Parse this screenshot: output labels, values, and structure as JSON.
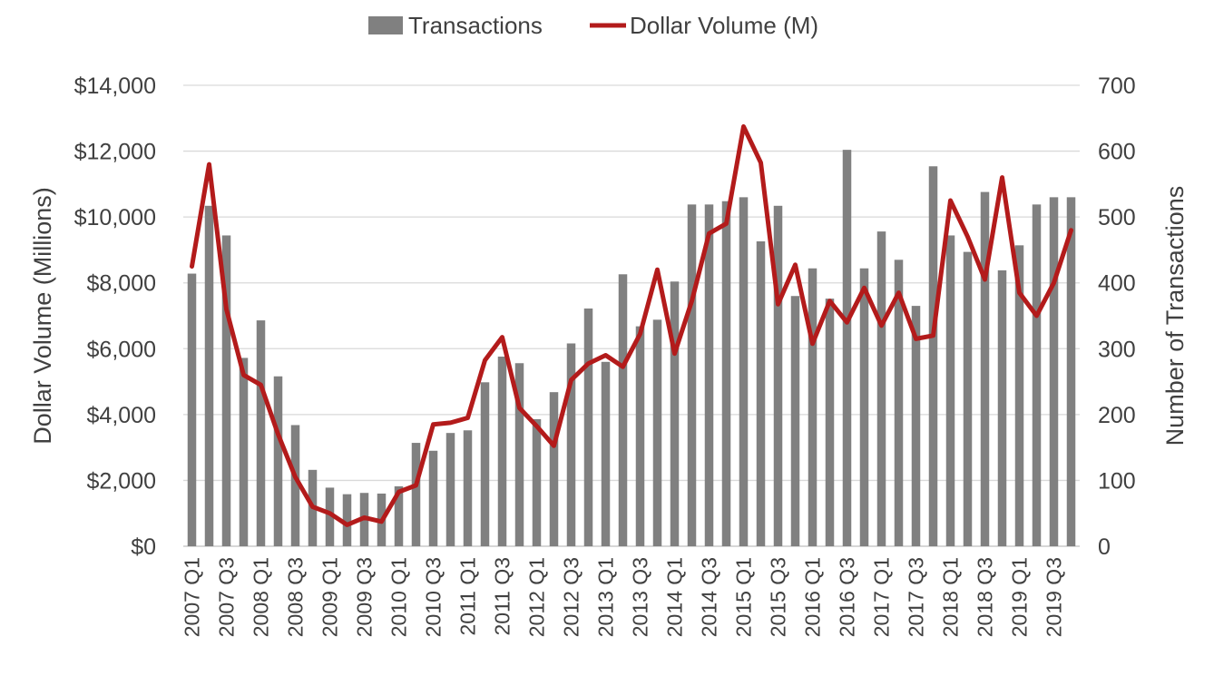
{
  "chart_data": {
    "type": "bar",
    "title": "",
    "legend": {
      "placement": "top-center",
      "items": [
        {
          "label": "Transactions",
          "kind": "bar",
          "color": "#808080"
        },
        {
          "label": "Dollar Volume (M)",
          "kind": "line",
          "color": "#B31B1B"
        }
      ]
    },
    "categories": [
      "2007 Q1",
      "2007 Q2",
      "2007 Q3",
      "2007 Q4",
      "2008 Q1",
      "2008 Q2",
      "2008 Q3",
      "2008 Q4",
      "2009 Q1",
      "2009 Q2",
      "2009 Q3",
      "2009 Q4",
      "2010 Q1",
      "2010 Q2",
      "2010 Q3",
      "2010 Q4",
      "2011 Q1",
      "2011 Q2",
      "2011 Q3",
      "2011 Q4",
      "2012 Q1",
      "2012 Q2",
      "2012 Q3",
      "2012 Q4",
      "2013 Q1",
      "2013 Q2",
      "2013 Q3",
      "2013 Q4",
      "2014 Q1",
      "2014 Q2",
      "2014 Q3",
      "2014 Q4",
      "2015 Q1",
      "2015 Q2",
      "2015 Q3",
      "2015 Q4",
      "2016 Q1",
      "2016 Q2",
      "2016 Q3",
      "2016 Q4",
      "2017 Q1",
      "2017 Q2",
      "2017 Q3",
      "2017 Q4",
      "2018 Q1",
      "2018 Q2",
      "2018 Q3",
      "2018 Q4",
      "2019 Q1",
      "2019 Q2",
      "2019 Q3",
      "2019 Q4"
    ],
    "x_tick_labels": [
      "2007 Q1",
      "2007 Q3",
      "2008 Q1",
      "2008 Q3",
      "2009 Q1",
      "2009 Q3",
      "2010 Q1",
      "2010 Q3",
      "2011 Q1",
      "2011 Q3",
      "2012 Q1",
      "2012 Q3",
      "2013 Q1",
      "2013 Q3",
      "2014 Q1",
      "2014 Q3",
      "2015 Q1",
      "2015 Q3",
      "2016 Q1",
      "2016 Q3",
      "2017 Q1",
      "2017 Q3",
      "2018 Q1",
      "2018 Q3",
      "2019 Q1",
      "2019 Q3"
    ],
    "series": [
      {
        "name": "Transactions",
        "type": "bar",
        "axis": "right",
        "color": "#808080",
        "values": [
          414,
          517,
          472,
          286,
          343,
          258,
          184,
          116,
          89,
          79,
          81,
          80,
          91,
          157,
          145,
          172,
          176,
          249,
          288,
          278,
          193,
          234,
          308,
          361,
          280,
          413,
          334,
          344,
          402,
          519,
          519,
          524,
          530,
          463,
          517,
          380,
          422,
          376,
          602,
          422,
          478,
          435,
          365,
          577,
          472,
          447,
          538,
          419,
          457,
          519,
          530,
          530
        ]
      },
      {
        "name": "Dollar Volume (M)",
        "type": "line",
        "axis": "left",
        "color": "#B31B1B",
        "values": [
          8500,
          11600,
          7200,
          5200,
          4900,
          3400,
          2100,
          1200,
          1000,
          650,
          870,
          750,
          1650,
          1850,
          3700,
          3750,
          3900,
          5650,
          6350,
          4200,
          3650,
          3050,
          5050,
          5550,
          5800,
          5450,
          6450,
          8400,
          5850,
          7450,
          9500,
          9800,
          12750,
          11650,
          7350,
          8550,
          6150,
          7450,
          6800,
          7850,
          6700,
          7700,
          6300,
          6400,
          10500,
          9400,
          8100,
          11200,
          7700,
          7000,
          8000,
          9600
        ]
      }
    ],
    "y_left": {
      "label": "Dollar Volume (Millions)",
      "range": [
        0,
        14000
      ],
      "ticks": [
        0,
        2000,
        4000,
        6000,
        8000,
        10000,
        12000,
        14000
      ],
      "tick_labels": [
        "$0",
        "$2,000",
        "$4,000",
        "$6,000",
        "$8,000",
        "$10,000",
        "$12,000",
        "$14,000"
      ]
    },
    "y_right": {
      "label": "Number of Transactions",
      "range": [
        0,
        700
      ],
      "ticks": [
        0,
        100,
        200,
        300,
        400,
        500,
        600,
        700
      ],
      "tick_labels": [
        "0",
        "100",
        "200",
        "300",
        "400",
        "500",
        "600",
        "700"
      ]
    },
    "grid": true,
    "gridline_color": "#D9D9D9"
  }
}
